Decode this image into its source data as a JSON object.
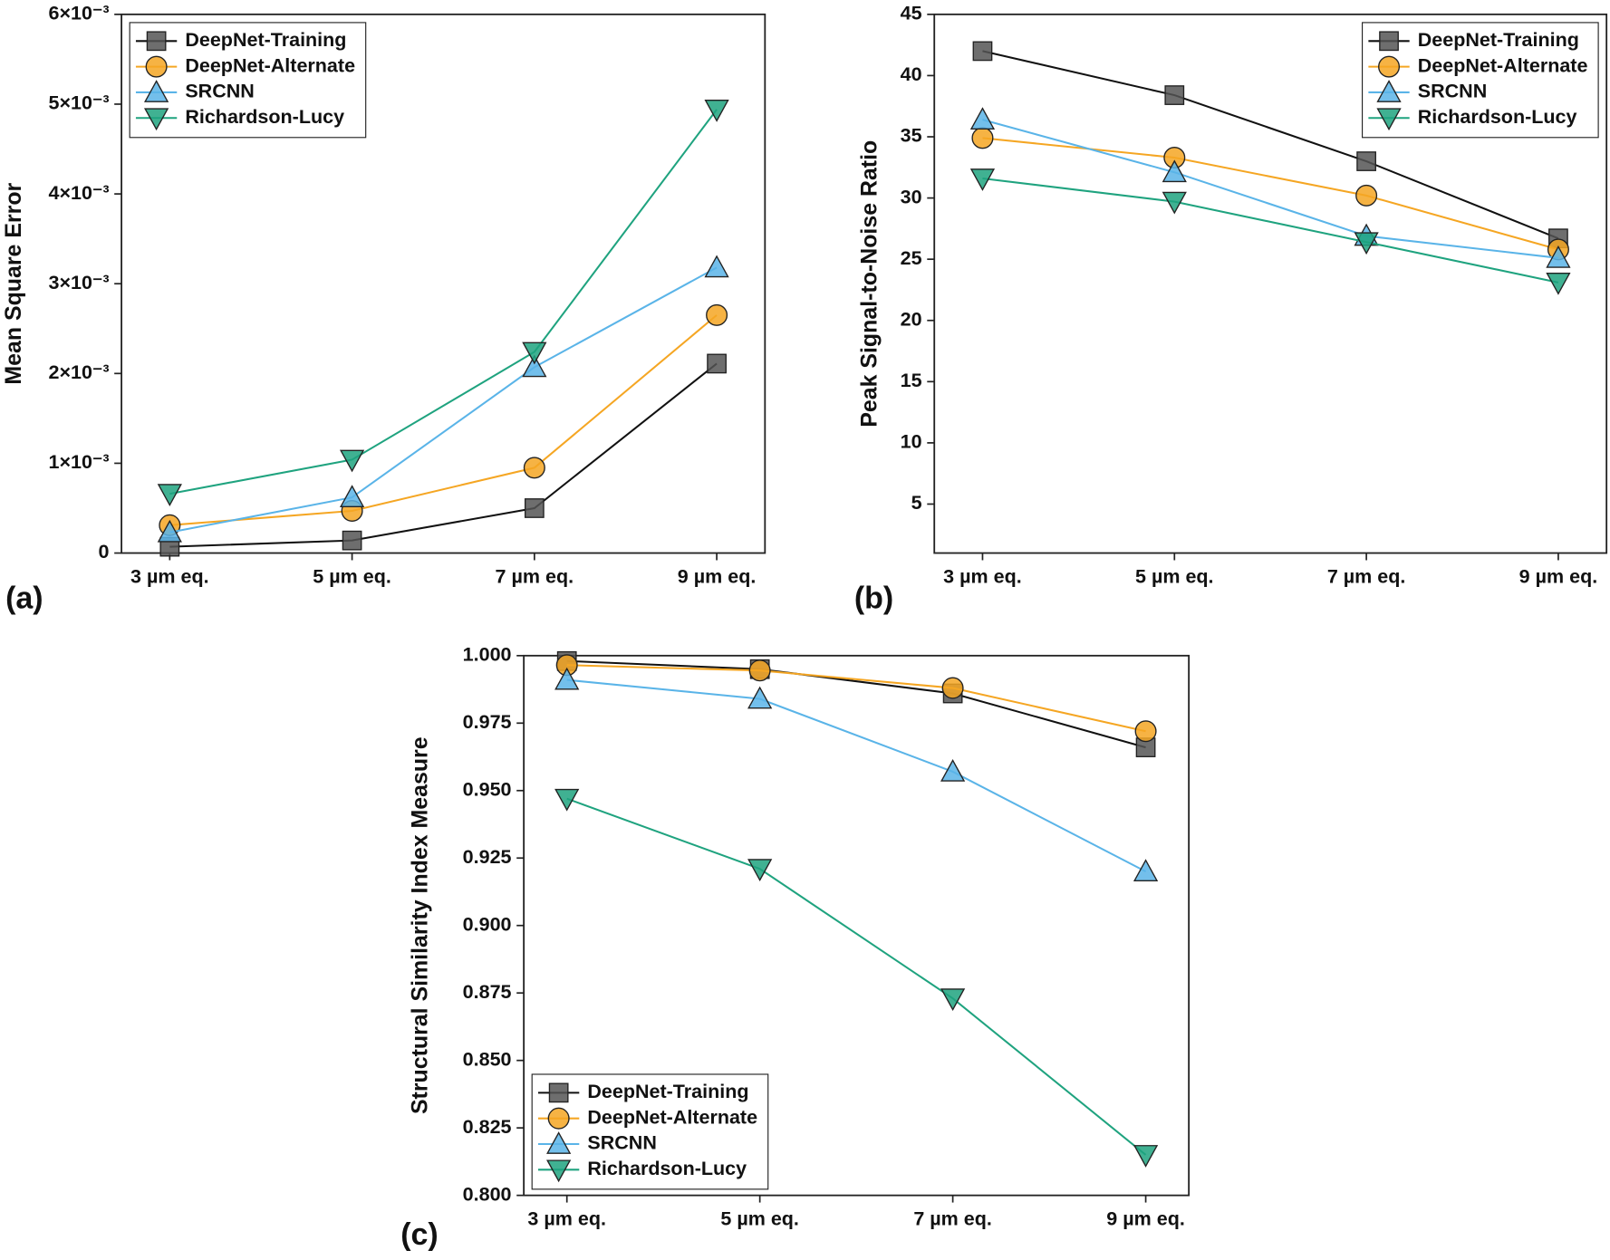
{
  "chart_data": [
    {
      "type": "line",
      "label": "(a)",
      "y_label": "Mean Square Error",
      "categories": [
        "3 µm eq.",
        "5 µm eq.",
        "7 µm eq.",
        "9 µm eq."
      ],
      "ylim": [
        0,
        0.006
      ],
      "yticks": [
        0,
        {
          "value": 0.001,
          "label": "1×10⁻³"
        },
        {
          "value": 0.002,
          "label": "2×10⁻³"
        },
        {
          "value": 0.003,
          "label": "3×10⁻³"
        },
        {
          "value": 0.004,
          "label": "4×10⁻³"
        },
        {
          "value": 0.005,
          "label": "5×10⁻³"
        },
        {
          "value": 0.006,
          "label": "6×10⁻³"
        }
      ],
      "legend": "top-left",
      "series": [
        {
          "name": "DeepNet-Training",
          "color": "#555555",
          "marker": "square",
          "values": [
            7e-05,
            0.00014,
            0.0005,
            0.00211
          ]
        },
        {
          "name": "DeepNet-Alternate",
          "color": "#f5a623",
          "marker": "circle",
          "values": [
            0.00031,
            0.00047,
            0.00095,
            0.00265
          ]
        },
        {
          "name": "SRCNN",
          "color": "#5ab4e8",
          "marker": "triangle-up",
          "values": [
            0.00023,
            0.00062,
            0.00207,
            0.00318
          ]
        },
        {
          "name": "Richardson-Lucy",
          "color": "#1fa37f",
          "marker": "triangle-down",
          "values": [
            0.00066,
            0.00104,
            0.00224,
            0.00494
          ]
        }
      ]
    },
    {
      "type": "line",
      "label": "(b)",
      "y_label": "Peak Signal-to-Noise Ratio",
      "categories": [
        "3 µm eq.",
        "5 µm eq.",
        "7 µm eq.",
        "9 µm eq."
      ],
      "ylim": [
        1,
        45
      ],
      "yticks": [
        5,
        10,
        15,
        20,
        25,
        30,
        35,
        40,
        45
      ],
      "legend": "top-right",
      "series": [
        {
          "name": "DeepNet-Training",
          "color": "#555555",
          "marker": "square",
          "values": [
            42,
            38.4,
            33,
            26.7
          ]
        },
        {
          "name": "DeepNet-Alternate",
          "color": "#f5a623",
          "marker": "circle",
          "values": [
            34.9,
            33.3,
            30.2,
            25.8
          ]
        },
        {
          "name": "SRCNN",
          "color": "#5ab4e8",
          "marker": "triangle-up",
          "values": [
            36.4,
            32.1,
            26.9,
            25.1
          ]
        },
        {
          "name": "Richardson-Lucy",
          "color": "#1fa37f",
          "marker": "triangle-down",
          "values": [
            31.6,
            29.7,
            26.4,
            23.1
          ]
        }
      ]
    },
    {
      "type": "line",
      "label": "(c)",
      "y_label": "Structural Similarity Index Measure",
      "categories": [
        "3 µm eq.",
        "5 µm eq.",
        "7 µm eq.",
        "9 µm eq."
      ],
      "ylim": [
        0.8,
        1
      ],
      "yticks": [
        {
          "value": 0.8,
          "label": "0.800"
        },
        0.825,
        {
          "value": 0.85,
          "label": "0.850"
        },
        0.875,
        {
          "value": 0.9,
          "label": "0.900"
        },
        0.925,
        {
          "value": 0.95,
          "label": "0.950"
        },
        0.975,
        {
          "value": 1,
          "label": "1.000"
        }
      ],
      "legend": "bottom-left",
      "series": [
        {
          "name": "DeepNet-Training",
          "color": "#555555",
          "marker": "square",
          "values": [
            0.998,
            0.995,
            0.986,
            0.966
          ]
        },
        {
          "name": "DeepNet-Alternate",
          "color": "#f5a623",
          "marker": "circle",
          "values": [
            0.9965,
            0.9945,
            0.988,
            0.972
          ]
        },
        {
          "name": "SRCNN",
          "color": "#5ab4e8",
          "marker": "triangle-up",
          "values": [
            0.991,
            0.984,
            0.957,
            0.92
          ]
        },
        {
          "name": "Richardson-Lucy",
          "color": "#1fa37f",
          "marker": "triangle-down",
          "values": [
            0.947,
            0.921,
            0.873,
            0.815
          ]
        }
      ]
    }
  ]
}
